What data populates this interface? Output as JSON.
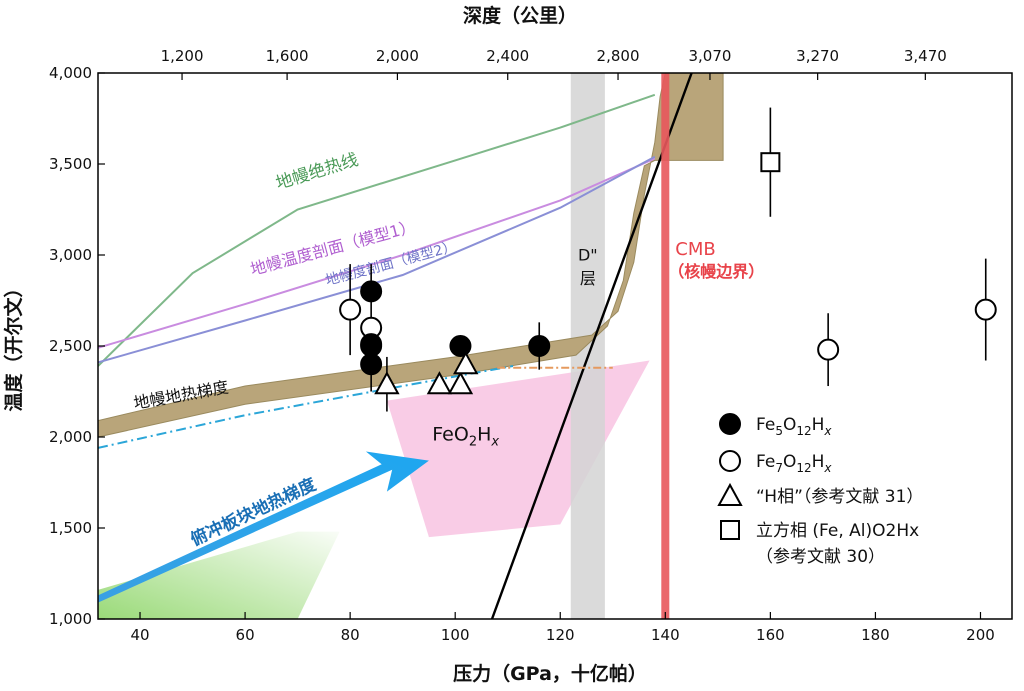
{
  "chart_data": {
    "type": "scatter",
    "xlabel": "压力（GPa，十亿帕）",
    "ylabel": "温度（开尔文）",
    "top_axis_label": "深度（公里）",
    "xlim": [
      32,
      206
    ],
    "ylim": [
      1000,
      4000
    ],
    "x_ticks": [
      40,
      60,
      80,
      100,
      120,
      140,
      160,
      180,
      200
    ],
    "y_ticks": [
      1000,
      1500,
      2000,
      2500,
      3000,
      3500,
      4000
    ],
    "y_tick_labels": [
      "1,000",
      "1,500",
      "2,000",
      "2,500",
      "3,000",
      "3,500",
      "4,000"
    ],
    "top_ticks": [
      {
        "label": "1,200",
        "x": 48
      },
      {
        "label": "1,600",
        "x": 68
      },
      {
        "label": "2,000",
        "x": 89
      },
      {
        "label": "2,400",
        "x": 110
      },
      {
        "label": "2,800",
        "x": 131
      },
      {
        "label": "3,070",
        "x": 148.5
      },
      {
        "label": "3,270",
        "x": 169
      },
      {
        "label": "3,470",
        "x": 189.5
      }
    ],
    "curves": [
      {
        "label": "地幔绝热线",
        "color": "#7fb88a",
        "points": [
          [
            32,
            2390
          ],
          [
            50,
            2900
          ],
          [
            70,
            3250
          ],
          [
            100,
            3520
          ],
          [
            120,
            3700
          ],
          [
            138,
            3880
          ]
        ]
      },
      {
        "label": "地幔温度剖面（模型1）",
        "color": "#c98ce0",
        "points": [
          [
            32,
            2490
          ],
          [
            60,
            2730
          ],
          [
            90,
            3000
          ],
          [
            120,
            3300
          ],
          [
            138,
            3530
          ]
        ]
      },
      {
        "label": "地幔度剖面（模型2）",
        "color": "#8a8fd6",
        "points": [
          [
            32,
            2410
          ],
          [
            60,
            2640
          ],
          [
            90,
            2890
          ],
          [
            120,
            3260
          ],
          [
            138,
            3540
          ]
        ]
      },
      {
        "label": "",
        "color": "#000000",
        "points": [
          [
            107,
            1000
          ],
          [
            145,
            4000
          ]
        ]
      },
      {
        "label": "",
        "color": "#2ba6d8",
        "points": [
          [
            32,
            1940
          ],
          [
            60,
            2120
          ],
          [
            90,
            2280
          ],
          [
            111,
            2390
          ]
        ]
      },
      {
        "label": "",
        "color": "#e59a5e",
        "points": [
          [
            108,
            2380
          ],
          [
            130,
            2380
          ]
        ]
      }
    ],
    "bands": [
      {
        "label": "地幔地热梯度",
        "color": "#b9a57a",
        "upper": [
          [
            32,
            2090
          ],
          [
            60,
            2280
          ],
          [
            100,
            2440
          ],
          [
            126,
            2560
          ],
          [
            131,
            2690
          ],
          [
            134,
            2960
          ],
          [
            136,
            3330
          ],
          [
            138,
            3620
          ],
          [
            139,
            3870
          ],
          [
            140,
            4000
          ],
          [
            151,
            4000
          ],
          [
            151,
            3520
          ],
          [
            140,
            3520
          ]
        ],
        "lower": [
          [
            32,
            2000
          ],
          [
            60,
            2180
          ],
          [
            100,
            2340
          ],
          [
            123,
            2450
          ],
          [
            129,
            2610
          ],
          [
            132,
            2860
          ],
          [
            134,
            3230
          ],
          [
            136,
            3490
          ],
          [
            138,
            3520
          ]
        ]
      }
    ],
    "regions": [
      {
        "label": "D\"层",
        "color": "#d3d3d3",
        "x_range": [
          122,
          128.5
        ]
      },
      {
        "label": "CMB（核幔边界）",
        "color": "#e8585c",
        "x": 140
      }
    ],
    "series": [
      {
        "name": "Fe5O12Hx",
        "marker": "filled-circle",
        "points": [
          [
            84,
            2800
          ],
          [
            84,
            2510
          ],
          [
            84,
            2400
          ],
          [
            101,
            2500
          ],
          [
            116,
            2500
          ]
        ],
        "y_err": [
          150,
          150,
          150,
          0,
          130
        ]
      },
      {
        "name": "Fe7O12Hx",
        "marker": "open-circle",
        "points": [
          [
            80,
            2700
          ],
          [
            84,
            2600
          ],
          [
            84,
            2500
          ],
          [
            171,
            2480
          ],
          [
            201,
            2700
          ]
        ],
        "y_err": [
          250,
          0,
          0,
          200,
          280
        ]
      },
      {
        "name": "“H相”（参考文献 31）",
        "marker": "open-triangle",
        "points": [
          [
            87,
            2290
          ],
          [
            97,
            2290
          ],
          [
            101,
            2290
          ],
          [
            102,
            2400
          ]
        ],
        "y_err": [
          150,
          0,
          0,
          0
        ]
      },
      {
        "name": "立方相 (Fe, Al)O2Hx（参考文献 30）",
        "marker": "open-square",
        "points": [
          [
            160,
            3510
          ]
        ],
        "y_err": [
          300
        ]
      }
    ],
    "annotations": [
      {
        "text": "FeO2Hx",
        "x": 102,
        "y": 1980
      },
      {
        "text": "俯冲板块地热梯度",
        "x": 62,
        "y": 1560
      }
    ]
  }
}
